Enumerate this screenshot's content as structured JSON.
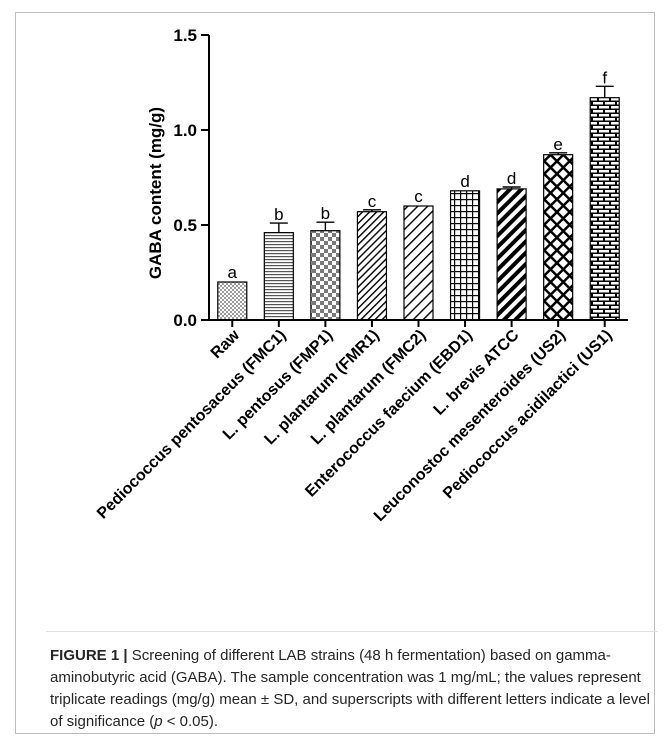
{
  "chart_data": {
    "type": "bar",
    "ylabel": "GABA content (mg/g)",
    "ylim": [
      0.0,
      1.5
    ],
    "y_ticks": [
      "0.0",
      "0.5",
      "1.0",
      "1.5"
    ],
    "y_tick_values": [
      0.0,
      0.5,
      1.0,
      1.5
    ],
    "categories": [
      "Raw",
      "Pediococcus pentosaceus (FMC1)",
      "L. pentosus (FMP1)",
      "L. plantarum (FMR1)",
      "L. plantarum (FMC2)",
      "Enterococcus faecium (EBD1)",
      "L. brevis ATCC",
      "Leuconostoc mesenteroides (US2)",
      "Pediococcus acidilactici (US1)"
    ],
    "values": [
      0.2,
      0.46,
      0.47,
      0.57,
      0.6,
      0.68,
      0.69,
      0.87,
      1.17
    ],
    "errors": [
      0.005,
      0.05,
      0.045,
      0.01,
      0.005,
      0.005,
      0.01,
      0.01,
      0.06
    ],
    "letters": [
      "a",
      "b",
      "b",
      "c",
      "c",
      "d",
      "d",
      "e",
      "f"
    ],
    "patterns": [
      "fine-checker",
      "horizontal-lines",
      "checker",
      "diagonal-thin",
      "diagonal-wide",
      "grid",
      "diagonal-bold",
      "diamond-lattice",
      "brick"
    ],
    "colors": {
      "bar_stroke": "#000000",
      "axis": "#000000",
      "pattern_ink": "#000000"
    },
    "grid": false,
    "legend": "none"
  },
  "caption": {
    "label": "FIGURE 1 |",
    "text_before_p": " Screening of different LAB strains (48 h fermentation) based on gamma-aminobutyric acid (GABA). The sample concentration was 1 mg/mL; the values represent triplicate readings (mg/g) mean ± SD, and superscripts with different letters indicate a level of significance (",
    "p_symbol": "p",
    "text_after_p": " < 0.05)."
  }
}
